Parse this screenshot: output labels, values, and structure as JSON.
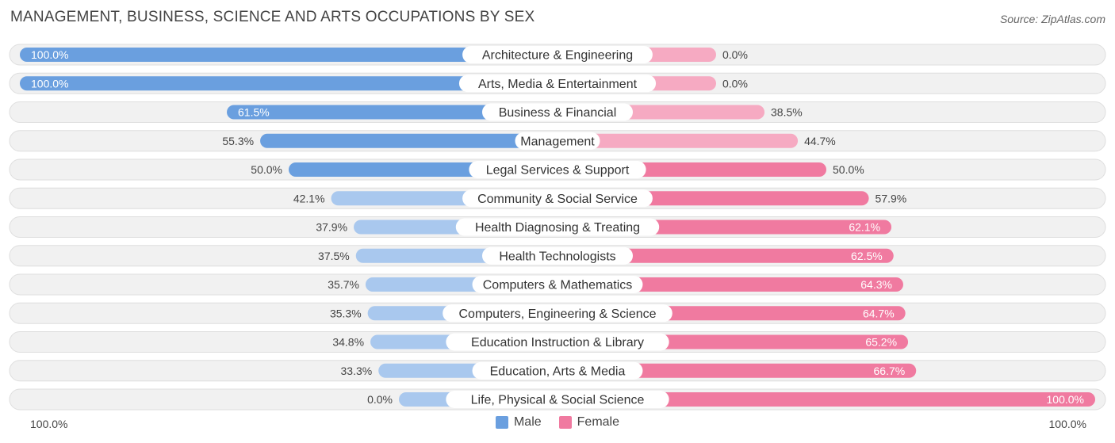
{
  "title": "MANAGEMENT, BUSINESS, SCIENCE AND ARTS OCCUPATIONS BY SEX",
  "source": "Source: ZipAtlas.com",
  "colors": {
    "male": "#6a9fdf",
    "male_light": "#a9c8ee",
    "female": "#f07aa0",
    "female_light": "#f6aac2"
  },
  "legend": {
    "male_label": "Male",
    "female_label": "Female"
  },
  "axis": {
    "left_label": "100.0%",
    "right_label": "100.0%"
  },
  "chart_data": {
    "type": "bar",
    "orientation": "horizontal-diverging",
    "categories": [
      "Architecture & Engineering",
      "Arts, Media & Entertainment",
      "Business & Financial",
      "Management",
      "Legal Services & Support",
      "Community & Social Service",
      "Health Diagnosing & Treating",
      "Health Technologists",
      "Computers & Mathematics",
      "Computers, Engineering & Science",
      "Education Instruction & Library",
      "Education, Arts & Media",
      "Life, Physical & Social Science"
    ],
    "series": [
      {
        "name": "Male",
        "values": [
          100.0,
          100.0,
          61.5,
          55.3,
          50.0,
          42.1,
          37.9,
          37.5,
          35.7,
          35.3,
          34.8,
          33.3,
          0.0
        ],
        "labels": [
          "100.0%",
          "100.0%",
          "61.5%",
          "55.3%",
          "50.0%",
          "42.1%",
          "37.9%",
          "37.5%",
          "35.7%",
          "35.3%",
          "34.8%",
          "33.3%",
          "0.0%"
        ]
      },
      {
        "name": "Female",
        "values": [
          0.0,
          0.0,
          38.5,
          44.7,
          50.0,
          57.9,
          62.1,
          62.5,
          64.3,
          64.7,
          65.2,
          66.7,
          100.0
        ],
        "labels": [
          "0.0%",
          "0.0%",
          "38.5%",
          "44.7%",
          "50.0%",
          "57.9%",
          "62.1%",
          "62.5%",
          "64.3%",
          "64.7%",
          "65.2%",
          "66.7%",
          "100.0%"
        ]
      }
    ],
    "xlim": [
      -100,
      100
    ],
    "legend_position": "bottom-center",
    "grid": false
  }
}
